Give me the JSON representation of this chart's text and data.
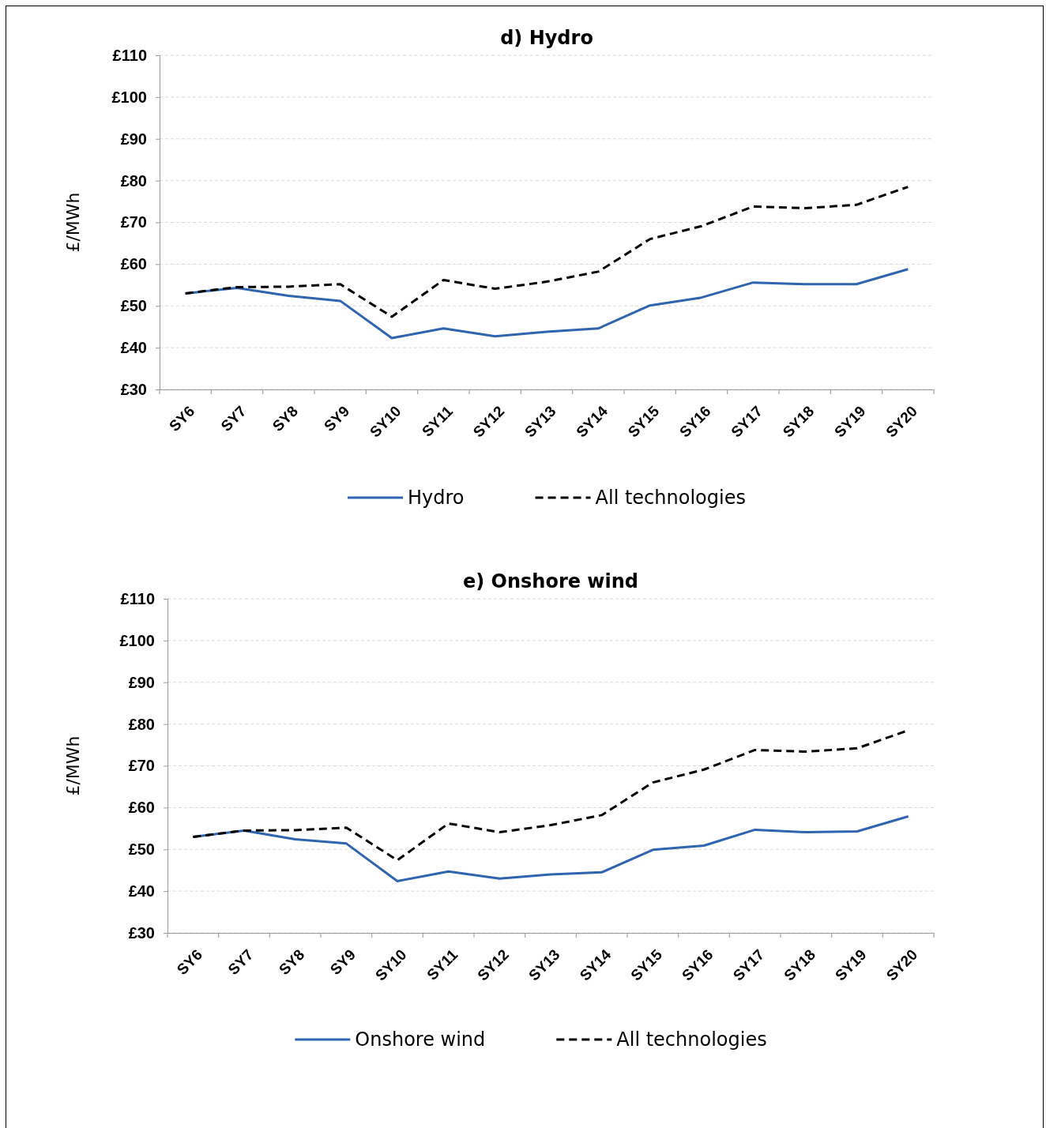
{
  "chart_data": [
    {
      "type": "line",
      "title": "d) Hydro",
      "ylabel": "£/MWh",
      "categories": [
        "SY6",
        "SY7",
        "SY8",
        "SY9",
        "SY10",
        "SY11",
        "SY12",
        "SY13",
        "SY14",
        "SY15",
        "SY16",
        "SY17",
        "SY18",
        "SY19",
        "SY20"
      ],
      "series": [
        {
          "name": "Hydro",
          "color": "#2e64b0",
          "line_style": "solid",
          "values": [
            53,
            54.3,
            52.4,
            51.2,
            42.3,
            44.6,
            42.7,
            43.8,
            44.6,
            50.1,
            52,
            55.6,
            55.2,
            55.2,
            58.8
          ]
        },
        {
          "name": "All technologies",
          "color": "#000000",
          "line_style": "dashed",
          "values": [
            53,
            54.5,
            54.6,
            55.2,
            47.4,
            56.2,
            54.1,
            55.8,
            58.2,
            66,
            69.1,
            73.8,
            73.4,
            74.2,
            78.5
          ]
        }
      ],
      "ylim": [
        30,
        110
      ],
      "yticks": [
        {
          "value": 30,
          "label": "£30"
        },
        {
          "value": 40,
          "label": "£40"
        },
        {
          "value": 50,
          "label": "£50"
        },
        {
          "value": 60,
          "label": "£60"
        },
        {
          "value": 70,
          "label": "£70"
        },
        {
          "value": 80,
          "label": "£80"
        },
        {
          "value": 90,
          "label": "£90"
        },
        {
          "value": 100,
          "label": "£100"
        },
        {
          "value": 110,
          "label": "£110"
        }
      ],
      "grid": "y",
      "legend": "bottom",
      "marker": "none"
    },
    {
      "type": "line",
      "title": "e) Onshore wind",
      "ylabel": "£/MWh",
      "categories": [
        "SY6",
        "SY7",
        "SY8",
        "SY9",
        "SY10",
        "SY11",
        "SY12",
        "SY13",
        "SY14",
        "SY15",
        "SY16",
        "SY17",
        "SY18",
        "SY19",
        "SY20"
      ],
      "series": [
        {
          "name": "Onshore wind",
          "color": "#2e64b0",
          "line_style": "solid",
          "values": [
            53,
            54.5,
            52.4,
            51.4,
            42.4,
            44.7,
            43,
            44,
            44.5,
            49.9,
            50.9,
            54.7,
            54.1,
            54.3,
            57.9
          ]
        },
        {
          "name": "All technologies",
          "color": "#000000",
          "line_style": "dashed",
          "values": [
            53,
            54.5,
            54.6,
            55.2,
            47.4,
            56.2,
            54.1,
            55.8,
            58.2,
            66,
            69.1,
            73.8,
            73.4,
            74.2,
            78.5
          ]
        }
      ],
      "ylim": [
        30,
        110
      ],
      "yticks": [
        {
          "value": 30,
          "label": "£30"
        },
        {
          "value": 40,
          "label": "£40"
        },
        {
          "value": 50,
          "label": "£50"
        },
        {
          "value": 60,
          "label": "£60"
        },
        {
          "value": 70,
          "label": "£70"
        },
        {
          "value": 80,
          "label": "£80"
        },
        {
          "value": 90,
          "label": "£90"
        },
        {
          "value": 100,
          "label": "£100"
        },
        {
          "value": 110,
          "label": "£110"
        }
      ],
      "grid": "y",
      "legend": "bottom",
      "marker": "none"
    }
  ]
}
